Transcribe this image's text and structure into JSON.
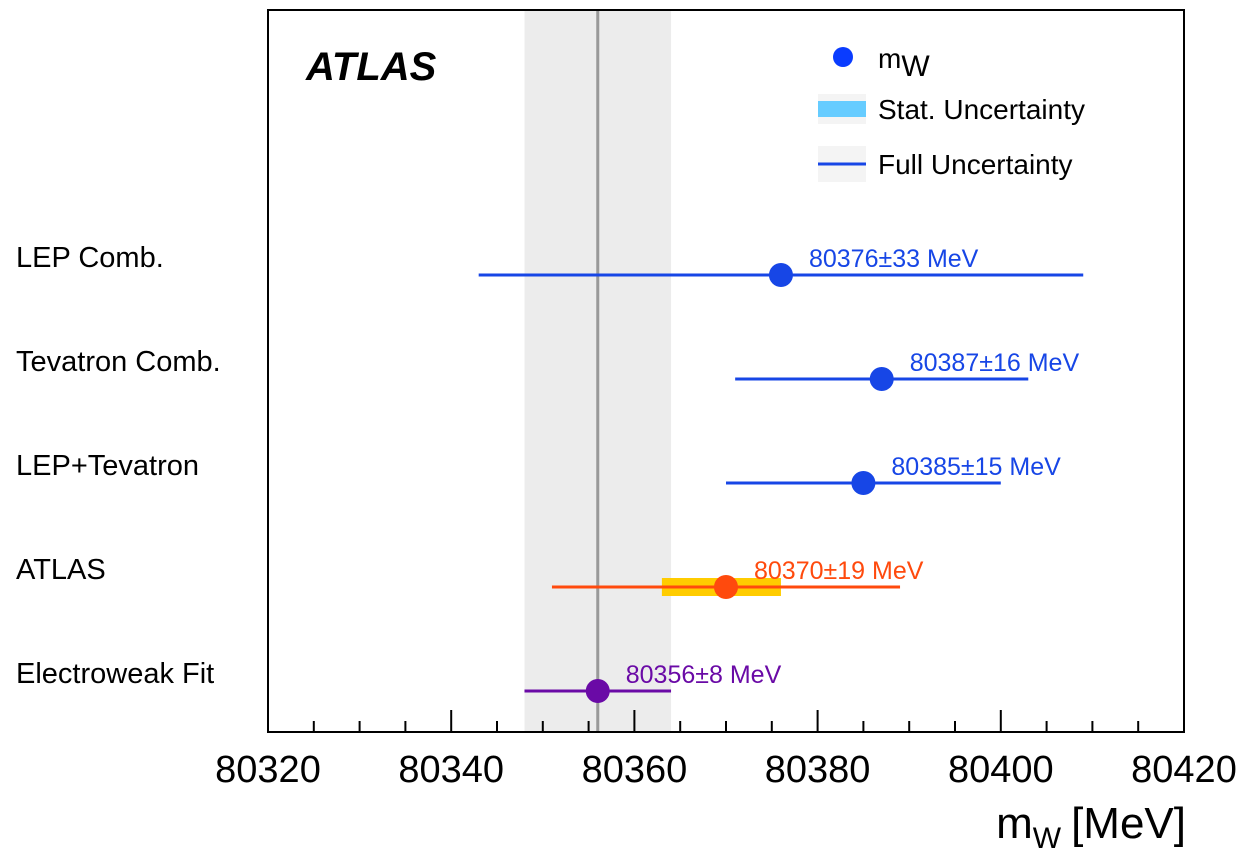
{
  "chart_data": {
    "type": "scatter",
    "experiment_label": "ATLAS",
    "xlabel": "m",
    "xlabel_sub": "W",
    "xlabel_unit": "[MeV]",
    "xlim": [
      80320,
      80420
    ],
    "xticks": [
      "80320",
      "80340",
      "80360",
      "80380",
      "80400",
      "80420"
    ],
    "grid": false,
    "legend_placement": "top-right",
    "legend": {
      "marker_label": "m",
      "marker_sub": "W",
      "stat_label": "Stat. Uncertainty",
      "full_label": "Full Uncertainty"
    },
    "band": {
      "center": 80356,
      "half_width": 8,
      "color": "#ececec",
      "line_color": "#999999"
    },
    "measurements": [
      {
        "label": "LEP Comb.",
        "value": 80376,
        "full_unc": 33,
        "text": "80376±33 MeV",
        "color": "#1746e6"
      },
      {
        "label": "Tevatron Comb.",
        "value": 80387,
        "full_unc": 16,
        "text": "80387±16 MeV",
        "color": "#1746e6"
      },
      {
        "label": "LEP+Tevatron",
        "value": 80385,
        "full_unc": 15,
        "text": "80385±15 MeV",
        "color": "#1746e6"
      },
      {
        "label": "ATLAS",
        "value": 80370,
        "full_unc": 19,
        "stat_low": 80363,
        "stat_high": 80376,
        "text": "80370±19 MeV",
        "color": "#ff4a0d",
        "stat_color": "#ffcc00"
      },
      {
        "label": "Electroweak Fit",
        "value": 80356,
        "full_unc": 8,
        "text": "80356±8 MeV",
        "color": "#6a0aa6"
      }
    ],
    "colors": {
      "legend_marker": "#0a3cff",
      "legend_stat": "#66ccff",
      "legend_full": "#1746e6"
    }
  }
}
